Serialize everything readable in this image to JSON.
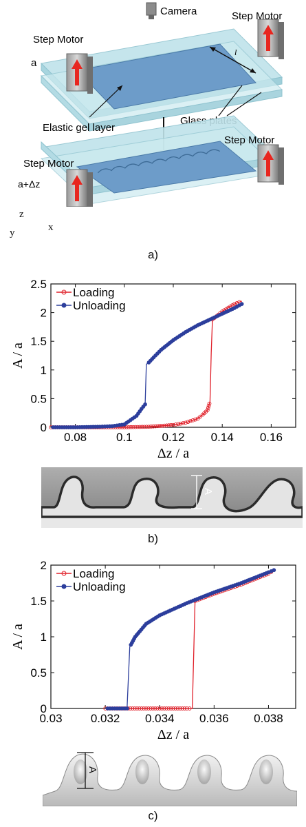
{
  "figure": {
    "panel_a": {
      "camera_label": "Camera",
      "step_motor_labels": [
        "Step Motor",
        "Step Motor",
        "Step Motor",
        "Step Motor"
      ],
      "a_label": "a",
      "a_dz_label": "a+Δz",
      "length_label": "l",
      "elastic_gel_label": "Elastic gel layer",
      "glass_plates_label": "Glass plates",
      "axis_z": "z",
      "axis_y": "y",
      "axis_x": "x",
      "caption": "a)"
    },
    "panel_b": {
      "caption": "b)",
      "inset_label": "A"
    },
    "panel_c": {
      "caption": "c)",
      "inset_label": "A"
    },
    "colors": {
      "loading": "#e0202a",
      "unloading": "#2c3e9c",
      "glass": "#bfe3ea",
      "gel": "#6d9cc9"
    }
  },
  "chart_data": [
    {
      "type": "line",
      "panel": "b",
      "xlabel": "Δz / a",
      "ylabel": "A / a",
      "xlim": [
        0.07,
        0.17
      ],
      "ylim": [
        0,
        2.5
      ],
      "xticks": [
        "0.08",
        "0.1",
        "0.12",
        "0.14",
        "0.16"
      ],
      "yticks": [
        "0",
        "0.5",
        "1",
        "1.5",
        "2",
        "2.5"
      ],
      "legend": "top-left",
      "series": [
        {
          "name": "Loading",
          "color": "#e0202a",
          "x": [
            0.07,
            0.08,
            0.09,
            0.1,
            0.11,
            0.12,
            0.125,
            0.13,
            0.132,
            0.134,
            0.135,
            0.1355,
            0.136,
            0.14,
            0.145,
            0.148
          ],
          "y": [
            0.0,
            0.0,
            0.0,
            0.0,
            0.01,
            0.04,
            0.08,
            0.15,
            0.22,
            0.3,
            0.45,
            1.3,
            1.88,
            2.02,
            2.15,
            2.2
          ]
        },
        {
          "name": "Unloading",
          "color": "#2c3e9c",
          "x": [
            0.148,
            0.145,
            0.14,
            0.135,
            0.13,
            0.125,
            0.12,
            0.115,
            0.112,
            0.11,
            0.109,
            0.1085,
            0.107,
            0.105,
            0.1,
            0.095,
            0.09,
            0.08,
            0.07
          ],
          "y": [
            2.15,
            2.08,
            1.98,
            1.88,
            1.78,
            1.66,
            1.52,
            1.35,
            1.22,
            1.13,
            1.1,
            0.4,
            0.32,
            0.2,
            0.05,
            0.02,
            0.01,
            0.0,
            0.0
          ]
        }
      ]
    },
    {
      "type": "line",
      "panel": "c",
      "xlabel": "Δz / a",
      "ylabel": "A / a",
      "xlim": [
        0.03,
        0.039
      ],
      "ylim": [
        0,
        2
      ],
      "xticks": [
        "0.03",
        "0.032",
        "0.034",
        "0.036",
        "0.038"
      ],
      "yticks": [
        "0",
        "0.5",
        "1",
        "1.5",
        "2"
      ],
      "legend": "top-left",
      "series": [
        {
          "name": "Loading",
          "color": "#e0202a",
          "x": [
            0.032,
            0.033,
            0.034,
            0.035,
            0.0352,
            0.0353,
            0.036,
            0.037,
            0.038,
            0.0382
          ],
          "y": [
            0.0,
            0.0,
            0.0,
            0.0,
            0.0,
            1.5,
            1.6,
            1.73,
            1.88,
            1.93
          ]
        },
        {
          "name": "Unloading",
          "color": "#2c3e9c",
          "x": [
            0.0382,
            0.038,
            0.037,
            0.036,
            0.035,
            0.034,
            0.0335,
            0.0331,
            0.0329,
            0.0328,
            0.032
          ],
          "y": [
            1.93,
            1.9,
            1.75,
            1.62,
            1.47,
            1.3,
            1.18,
            1.0,
            0.86,
            0.0,
            0.0
          ]
        }
      ]
    }
  ]
}
